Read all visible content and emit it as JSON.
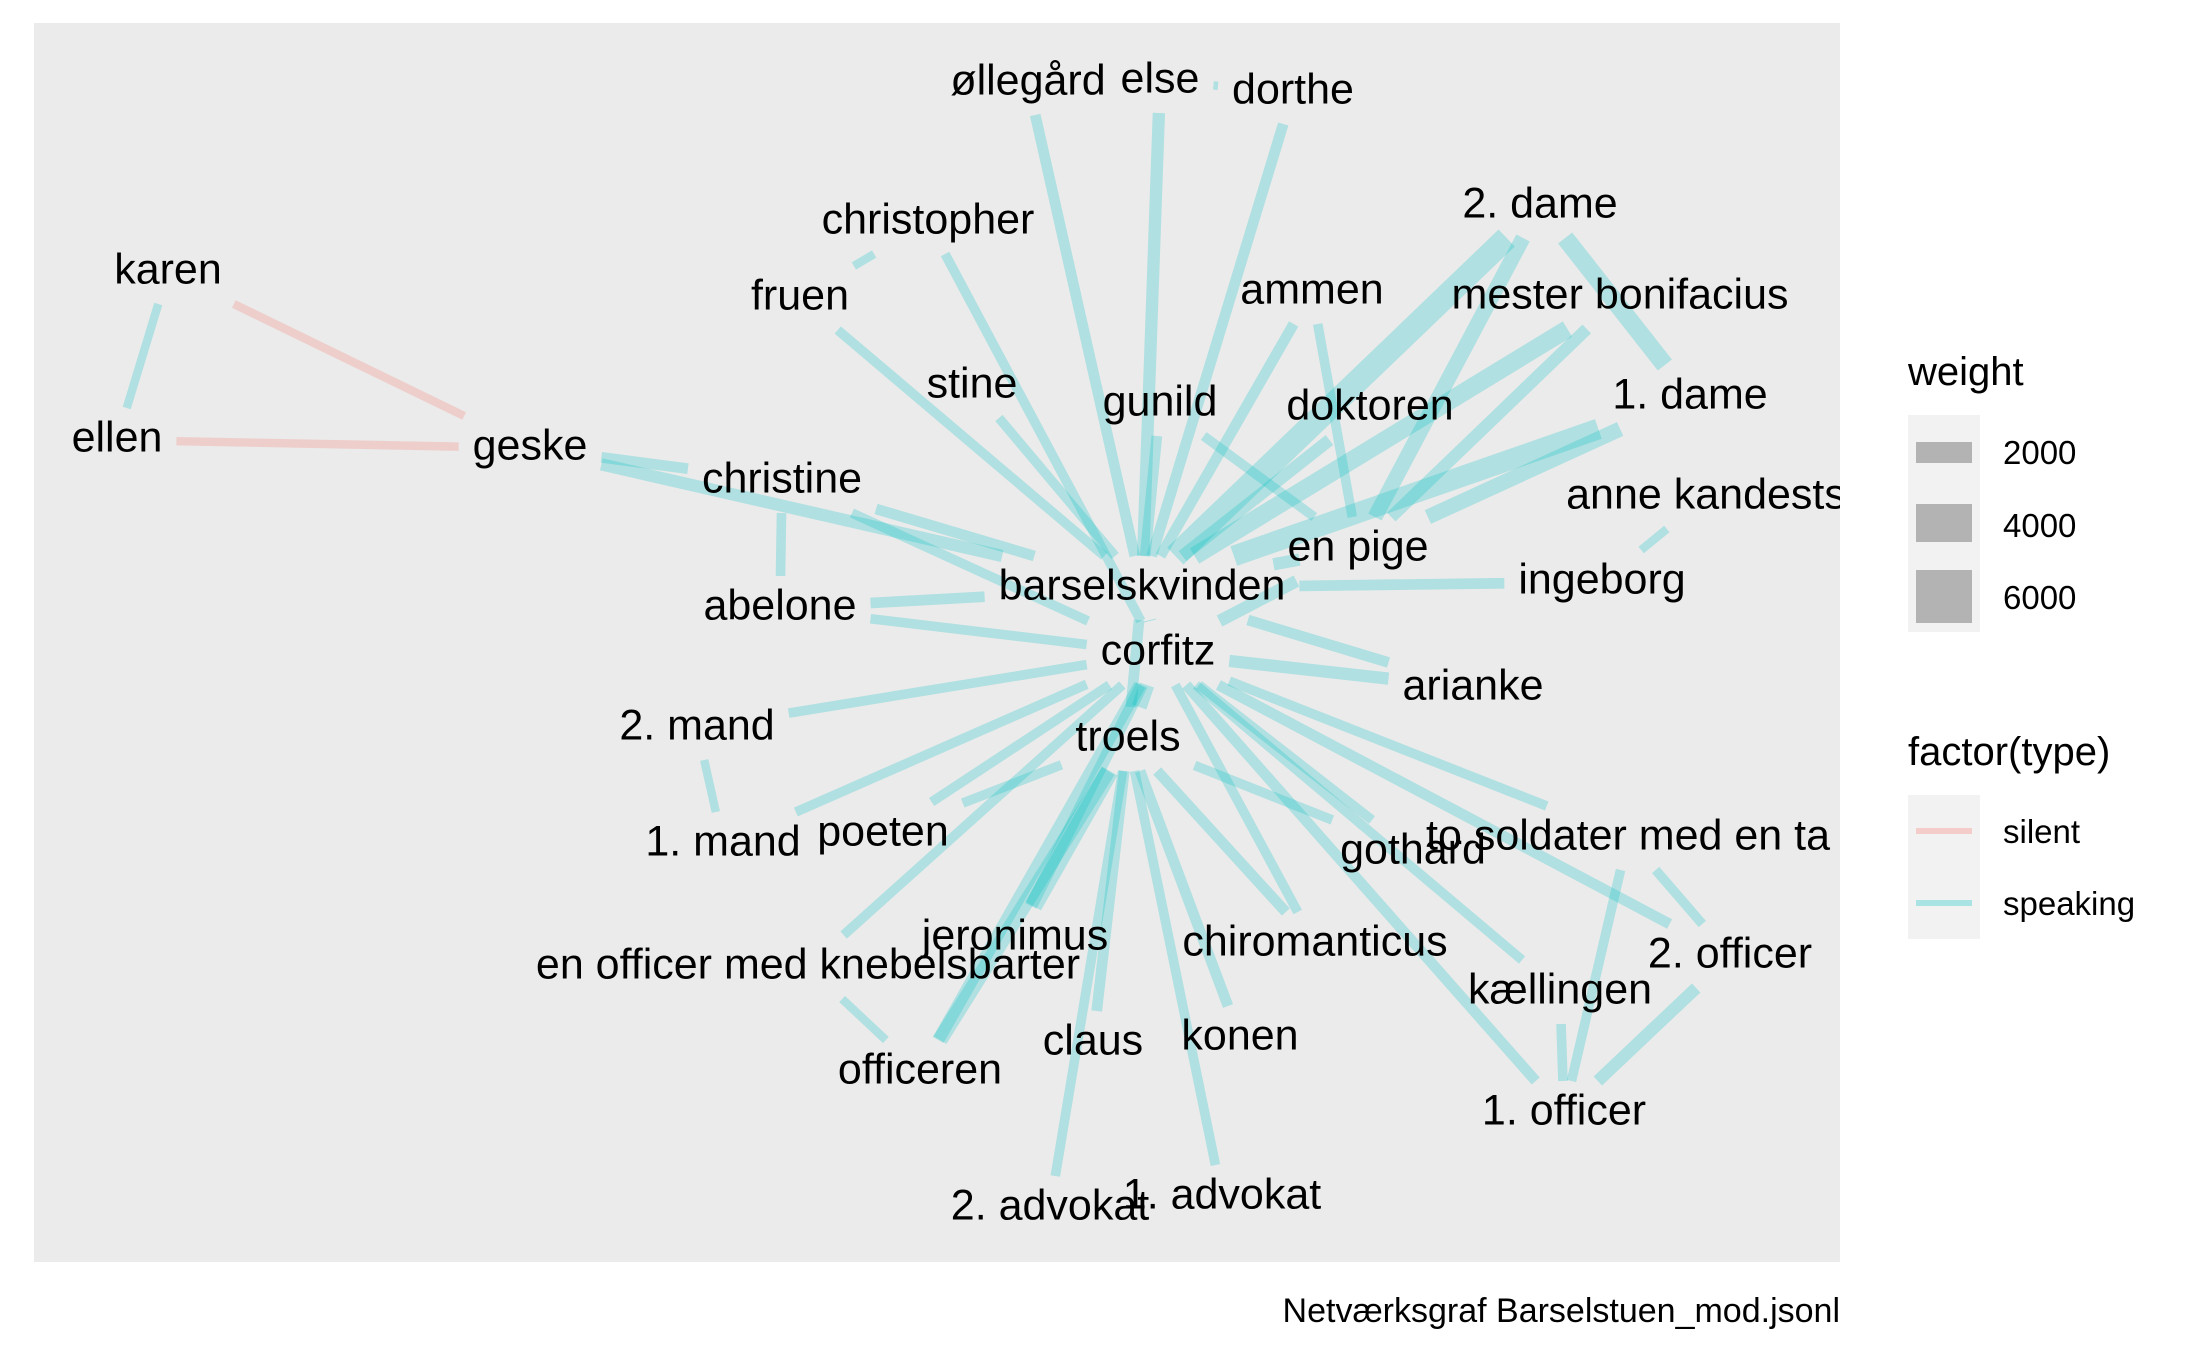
{
  "caption": "Netværksgraf Barselstuen_mod.jsonl",
  "legend": {
    "weight": {
      "title": "weight",
      "items": [
        "2000",
        "4000",
        "6000"
      ]
    },
    "type": {
      "title": "factor(type)",
      "items": [
        "silent",
        "speaking"
      ]
    }
  },
  "colors": {
    "panel": "#EBEBEB",
    "silent": "#F8766D",
    "speaking": "#00BFC4",
    "legend_key": "#B3B3B3"
  },
  "nodes": [
    {
      "id": "karen",
      "label": "karen"
    },
    {
      "id": "ellen",
      "label": "ellen"
    },
    {
      "id": "geske",
      "label": "geske"
    },
    {
      "id": "christopher",
      "label": "christopher"
    },
    {
      "id": "fruen",
      "label": "fruen"
    },
    {
      "id": "ollegard",
      "label": "øllegård"
    },
    {
      "id": "else",
      "label": "else"
    },
    {
      "id": "dorthe",
      "label": "dorthe"
    },
    {
      "id": "stine",
      "label": "stine"
    },
    {
      "id": "gunild",
      "label": "gunild"
    },
    {
      "id": "ammen",
      "label": "ammen"
    },
    {
      "id": "dame2",
      "label": "2. dame"
    },
    {
      "id": "bonifacius",
      "label": "mester bonifacius"
    },
    {
      "id": "doktoren",
      "label": "doktoren"
    },
    {
      "id": "dame1",
      "label": "1. dame"
    },
    {
      "id": "christine",
      "label": "christine"
    },
    {
      "id": "annekandest",
      "label": "anne kandests"
    },
    {
      "id": "enpige",
      "label": "en pige"
    },
    {
      "id": "barselskvinden",
      "label": "barselskvinden"
    },
    {
      "id": "ingeborg",
      "label": "ingeborg"
    },
    {
      "id": "abelone",
      "label": "abelone"
    },
    {
      "id": "corfitz",
      "label": "corfitz"
    },
    {
      "id": "arianke",
      "label": "arianke"
    },
    {
      "id": "mand2",
      "label": "2. mand"
    },
    {
      "id": "troels",
      "label": "troels"
    },
    {
      "id": "mand1",
      "label": "1. mand"
    },
    {
      "id": "poeten",
      "label": "poeten"
    },
    {
      "id": "gothard",
      "label": "gothard"
    },
    {
      "id": "tosoldater",
      "label": "to soldater med en ta"
    },
    {
      "id": "jeronimus",
      "label": "jeronimus"
    },
    {
      "id": "chiromanticus",
      "label": "chiromanticus"
    },
    {
      "id": "officer2",
      "label": "2. officer"
    },
    {
      "id": "enofficer",
      "label": "en officer med knebelsbarter"
    },
    {
      "id": "kaellingen",
      "label": "kællingen"
    },
    {
      "id": "claus",
      "label": "claus"
    },
    {
      "id": "konen",
      "label": "konen"
    },
    {
      "id": "officeren",
      "label": "officeren"
    },
    {
      "id": "officer1",
      "label": "1. officer"
    },
    {
      "id": "advokat2",
      "label": "2. advokat"
    },
    {
      "id": "advokat1",
      "label": "1. advokat"
    }
  ],
  "edges": [
    {
      "a": "karen",
      "b": "geske",
      "type": "silent",
      "weight": 800
    },
    {
      "a": "ellen",
      "b": "geske",
      "type": "silent",
      "weight": 800
    },
    {
      "a": "karen",
      "b": "ellen",
      "type": "speaking",
      "weight": 800
    },
    {
      "a": "geske",
      "b": "barselskvinden",
      "type": "speaking",
      "weight": 1500
    },
    {
      "a": "geske",
      "b": "christine",
      "type": "speaking",
      "weight": 1200
    },
    {
      "a": "christine",
      "b": "abelone",
      "type": "speaking",
      "weight": 1000
    },
    {
      "a": "christine",
      "b": "barselskvinden",
      "type": "speaking",
      "weight": 1200
    },
    {
      "a": "christine",
      "b": "corfitz",
      "type": "speaking",
      "weight": 1000
    },
    {
      "a": "abelone",
      "b": "barselskvinden",
      "type": "speaking",
      "weight": 1200
    },
    {
      "a": "abelone",
      "b": "corfitz",
      "type": "speaking",
      "weight": 1000
    },
    {
      "a": "christopher",
      "b": "fruen",
      "type": "speaking",
      "weight": 800
    },
    {
      "a": "christopher",
      "b": "corfitz",
      "type": "speaking",
      "weight": 1000
    },
    {
      "a": "fruen",
      "b": "barselskvinden",
      "type": "speaking",
      "weight": 1000
    },
    {
      "a": "ollegard",
      "b": "barselskvinden",
      "type": "speaking",
      "weight": 1200
    },
    {
      "a": "else",
      "b": "barselskvinden",
      "type": "speaking",
      "weight": 1500
    },
    {
      "a": "else",
      "b": "dorthe",
      "type": "speaking",
      "weight": 800
    },
    {
      "a": "dorthe",
      "b": "barselskvinden",
      "type": "speaking",
      "weight": 1200
    },
    {
      "a": "stine",
      "b": "barselskvinden",
      "type": "speaking",
      "weight": 1000
    },
    {
      "a": "gunild",
      "b": "barselskvinden",
      "type": "speaking",
      "weight": 1200
    },
    {
      "a": "gunild",
      "b": "enpige",
      "type": "speaking",
      "weight": 1000
    },
    {
      "a": "ammen",
      "b": "barselskvinden",
      "type": "speaking",
      "weight": 1200
    },
    {
      "a": "ammen",
      "b": "enpige",
      "type": "speaking",
      "weight": 1000
    },
    {
      "a": "dame2",
      "b": "barselskvinden",
      "type": "speaking",
      "weight": 3500
    },
    {
      "a": "dame2",
      "b": "dame1",
      "type": "speaking",
      "weight": 2500
    },
    {
      "a": "dame2",
      "b": "enpige",
      "type": "speaking",
      "weight": 2000
    },
    {
      "a": "bonifacius",
      "b": "barselskvinden",
      "type": "speaking",
      "weight": 2500
    },
    {
      "a": "bonifacius",
      "b": "enpige",
      "type": "speaking",
      "weight": 1500
    },
    {
      "a": "doktoren",
      "b": "barselskvinden",
      "type": "speaking",
      "weight": 1500
    },
    {
      "a": "dame1",
      "b": "barselskvinden",
      "type": "speaking",
      "weight": 3000
    },
    {
      "a": "dame1",
      "b": "enpige",
      "type": "speaking",
      "weight": 2000
    },
    {
      "a": "annekandest",
      "b": "ingeborg",
      "type": "speaking",
      "weight": 800
    },
    {
      "a": "barselskvinden",
      "b": "enpige",
      "type": "speaking",
      "weight": 1500
    },
    {
      "a": "barselskvinden",
      "b": "ingeborg",
      "type": "speaking",
      "weight": 1200
    },
    {
      "a": "barselskvinden",
      "b": "arianke",
      "type": "speaking",
      "weight": 1200
    },
    {
      "a": "barselskvinden",
      "b": "corfitz",
      "type": "speaking",
      "weight": 1500
    },
    {
      "a": "barselskvinden",
      "b": "troels",
      "type": "speaking",
      "weight": 1200
    },
    {
      "a": "corfitz",
      "b": "enpige",
      "type": "speaking",
      "weight": 1500
    },
    {
      "a": "corfitz",
      "b": "arianke",
      "type": "speaking",
      "weight": 1500
    },
    {
      "a": "corfitz",
      "b": "troels",
      "type": "speaking",
      "weight": 2000
    },
    {
      "a": "corfitz",
      "b": "mand2",
      "type": "speaking",
      "weight": 1000
    },
    {
      "a": "corfitz",
      "b": "mand1",
      "type": "speaking",
      "weight": 1000
    },
    {
      "a": "corfitz",
      "b": "poeten",
      "type": "speaking",
      "weight": 1000
    },
    {
      "a": "corfitz",
      "b": "enofficer",
      "type": "speaking",
      "weight": 1000
    },
    {
      "a": "corfitz",
      "b": "gothard",
      "type": "speaking",
      "weight": 1000
    },
    {
      "a": "corfitz",
      "b": "tosoldater",
      "type": "speaking",
      "weight": 1000
    },
    {
      "a": "corfitz",
      "b": "chiromanticus",
      "type": "speaking",
      "weight": 1000
    },
    {
      "a": "corfitz",
      "b": "kaellingen",
      "type": "speaking",
      "weight": 1000
    },
    {
      "a": "corfitz",
      "b": "officer1",
      "type": "speaking",
      "weight": 1200
    },
    {
      "a": "corfitz",
      "b": "officer2",
      "type": "speaking",
      "weight": 1200
    },
    {
      "a": "corfitz",
      "b": "jeronimus",
      "type": "speaking",
      "weight": 1500
    },
    {
      "a": "corfitz",
      "b": "officeren",
      "type": "speaking",
      "weight": 1500
    },
    {
      "a": "mand2",
      "b": "mand1",
      "type": "speaking",
      "weight": 800
    },
    {
      "a": "troels",
      "b": "poeten",
      "type": "speaking",
      "weight": 1000
    },
    {
      "a": "troels",
      "b": "jeronimus",
      "type": "speaking",
      "weight": 2500
    },
    {
      "a": "troels",
      "b": "officeren",
      "type": "speaking",
      "weight": 2000
    },
    {
      "a": "troels",
      "b": "claus",
      "type": "speaking",
      "weight": 1200
    },
    {
      "a": "troels",
      "b": "konen",
      "type": "speaking",
      "weight": 1200
    },
    {
      "a": "troels",
      "b": "advokat2",
      "type": "speaking",
      "weight": 1000
    },
    {
      "a": "troels",
      "b": "advokat1",
      "type": "speaking",
      "weight": 1000
    },
    {
      "a": "troels",
      "b": "chiromanticus",
      "type": "speaking",
      "weight": 1200
    },
    {
      "a": "troels",
      "b": "gothard",
      "type": "speaking",
      "weight": 1000
    },
    {
      "a": "enofficer",
      "b": "officeren",
      "type": "speaking",
      "weight": 800
    },
    {
      "a": "officer2",
      "b": "officer1",
      "type": "speaking",
      "weight": 1500
    },
    {
      "a": "tosoldater",
      "b": "officer1",
      "type": "speaking",
      "weight": 1000
    },
    {
      "a": "tosoldater",
      "b": "officer2",
      "type": "speaking",
      "weight": 1000
    },
    {
      "a": "kaellingen",
      "b": "officer1",
      "type": "speaking",
      "weight": 1000
    }
  ]
}
